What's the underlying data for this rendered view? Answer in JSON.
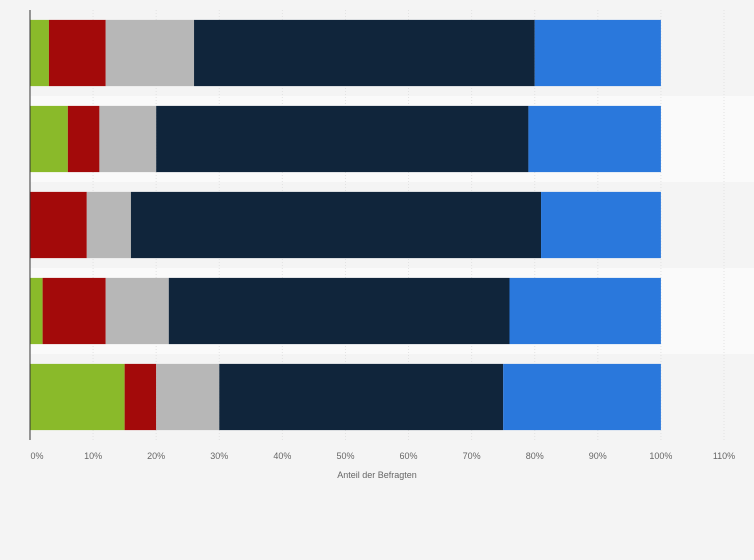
{
  "chart_data": {
    "type": "bar",
    "orientation": "horizontal",
    "stacked": true,
    "title": "",
    "xlabel": "Anteil der Befragten",
    "ylabel": "",
    "xlim": [
      0,
      110
    ],
    "xticks": [
      "0%",
      "10%",
      "20%",
      "30%",
      "40%",
      "50%",
      "60%",
      "70%",
      "80%",
      "90%",
      "100%",
      "110%"
    ],
    "grid": true,
    "legend": "none",
    "categories": [
      "",
      "",
      "",
      "",
      ""
    ],
    "series": [
      {
        "color": "#8aba2a",
        "values": [
          3,
          6,
          0,
          2,
          15
        ]
      },
      {
        "color": "#a30a0a",
        "values": [
          9,
          5,
          9,
          10,
          5
        ]
      },
      {
        "color": "#b7b7b7",
        "values": [
          14,
          9,
          7,
          10,
          10
        ]
      },
      {
        "color": "#10253b",
        "values": [
          54,
          59,
          65,
          54,
          45
        ]
      },
      {
        "color": "#2a78dc",
        "values": [
          20,
          21,
          19,
          24,
          25
        ]
      }
    ]
  }
}
